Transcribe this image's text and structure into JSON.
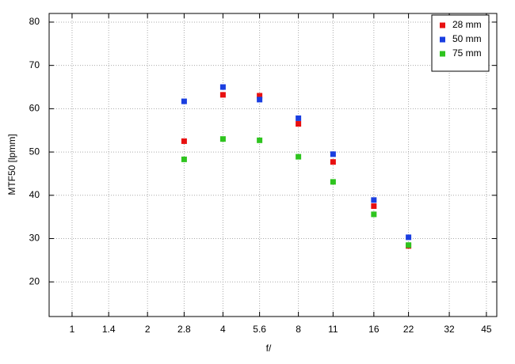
{
  "chart_data": {
    "type": "scatter",
    "x_label": "f/",
    "y_label": "MTF50 [lpmm]",
    "x": [
      2.8,
      4,
      5.6,
      8,
      11,
      16,
      22
    ],
    "series": [
      {
        "name": "28 mm",
        "color": "#e81010",
        "values": [
          52.5,
          63.2,
          63,
          56.5,
          47.7,
          37.5,
          28.3
        ]
      },
      {
        "name": "50 mm",
        "color": "#1a3ee0",
        "values": [
          61.7,
          65,
          62.1,
          57.8,
          49.5,
          38.9,
          30.3
        ]
      },
      {
        "name": "75 mm",
        "color": "#2ec41e",
        "values": [
          48.3,
          53,
          52.7,
          48.9,
          43.1,
          35.6,
          28.5
        ]
      }
    ],
    "xlim": [
      0.81,
      49.5
    ],
    "xticks": [
      1,
      1.4,
      2,
      2.8,
      4,
      5.6,
      8,
      11,
      16,
      22,
      32,
      45
    ],
    "x_log": true,
    "ylim": [
      12,
      82
    ],
    "yticks": [
      20,
      30,
      40,
      50,
      60,
      70,
      80
    ],
    "grid": true,
    "legend": "upper-right"
  }
}
